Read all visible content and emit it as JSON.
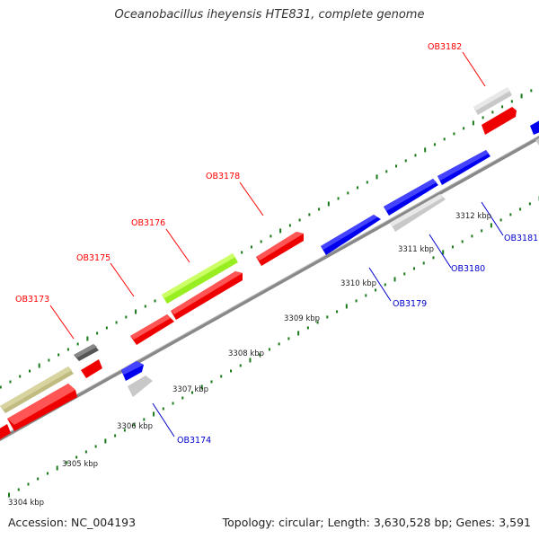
{
  "title": "Oceanobacillus iheyensis HTE831, complete genome",
  "footer": {
    "accession": "Accession: NC_004193",
    "topology": "Topology: circular; Length: 3,630,528 bp; Genes: 3,591"
  },
  "colors": {
    "forward_label": "#ff0000",
    "reverse_label": "#0000cc",
    "backbone": "#888888",
    "tick": "#1a7a1a",
    "red_gene": "#ee0000",
    "blue_gene": "#0000ee",
    "lightgray_gene": "#c8c8c8",
    "darkgray_gene": "#555555",
    "olive_gene": "#b8b37a",
    "green_gene": "#99ee22"
  },
  "map": {
    "kbp_labels": [
      "3304 kbp",
      "3305 kbp",
      "3306 kbp",
      "3307 kbp",
      "3308 kbp",
      "3309 kbp",
      "3310 kbp",
      "3311 kbp",
      "3312 kbp"
    ],
    "callouts": [
      {
        "name": "OB3173",
        "strand": "forward"
      },
      {
        "name": "OB3175",
        "strand": "forward"
      },
      {
        "name": "OB3176",
        "strand": "forward"
      },
      {
        "name": "OB3178",
        "strand": "forward"
      },
      {
        "name": "OB3182",
        "strand": "forward"
      },
      {
        "name": "OB3174",
        "strand": "reverse"
      },
      {
        "name": "OB3179",
        "strand": "reverse"
      },
      {
        "name": "OB3180",
        "strand": "reverse"
      },
      {
        "name": "OB3181",
        "strand": "reverse"
      }
    ]
  }
}
